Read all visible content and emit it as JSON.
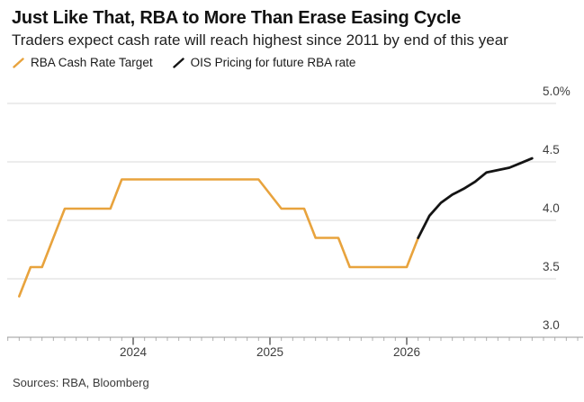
{
  "header": {
    "title": "Just Like That, RBA to More Than Erase Easing Cycle",
    "subtitle": "Traders expect cash rate will reach highest since 2011 by end of this year"
  },
  "legend": [
    {
      "label": "RBA Cash Rate Target",
      "color": "#E8A33D",
      "icon": "slash-icon"
    },
    {
      "label": "OIS Pricing for future RBA rate",
      "color": "#141414",
      "icon": "slash-icon"
    }
  ],
  "footer": {
    "sources": "Sources: RBA, Bloomberg"
  },
  "colors": {
    "rba_line": "#E8A33D",
    "ois_line": "#141414",
    "gridline": "#D9D9D9",
    "axis": "#9A9A9A",
    "minor_tick": "#B0B0B0",
    "major_tick": "#3C3C3C"
  },
  "chart_data": {
    "type": "line",
    "title": "Just Like That, RBA to More Than Erase Easing Cycle",
    "subtitle": "Traders expect cash rate will reach highest since 2011 by end of this year",
    "unit": "%",
    "grid": "horizontal-only",
    "legend_position": "top-left",
    "ylim": [
      3.0,
      5.0
    ],
    "xlim": [
      "2023-01",
      "2027-04"
    ],
    "y_axis": {
      "side": "right",
      "ticks": [
        {
          "value": 3.0,
          "label": "3.0"
        },
        {
          "value": 3.5,
          "label": "3.5"
        },
        {
          "value": 4.0,
          "label": "4.0"
        },
        {
          "value": 4.5,
          "label": "4.5"
        },
        {
          "value": 5.0,
          "label": "5.0%"
        }
      ]
    },
    "x_axis": {
      "minor_ticks": "monthly",
      "ticks": [
        {
          "month": "2024-01",
          "label": "2024"
        },
        {
          "month": "2025-01",
          "label": "2025"
        },
        {
          "month": "2026-01",
          "label": "2026"
        }
      ]
    },
    "series": [
      {
        "name": "RBA Cash Rate Target",
        "color": "#E8A33D",
        "points": [
          [
            "2023-03",
            3.35
          ],
          [
            "2023-04",
            3.6
          ],
          [
            "2023-05",
            3.6
          ],
          [
            "2023-06",
            3.85
          ],
          [
            "2023-07",
            4.1
          ],
          [
            "2023-11",
            4.1
          ],
          [
            "2023-12",
            4.35
          ],
          [
            "2024-12",
            4.35
          ],
          [
            "2025-02",
            4.1
          ],
          [
            "2025-04",
            4.1
          ],
          [
            "2025-05",
            3.85
          ],
          [
            "2025-07",
            3.85
          ],
          [
            "2025-08",
            3.6
          ],
          [
            "2026-01",
            3.6
          ],
          [
            "2026-02",
            3.85
          ]
        ]
      },
      {
        "name": "OIS Pricing for future RBA rate",
        "color": "#141414",
        "points": [
          [
            "2026-02",
            3.85
          ],
          [
            "2026-03",
            4.04
          ],
          [
            "2026-04",
            4.15
          ],
          [
            "2026-05",
            4.22
          ],
          [
            "2026-06",
            4.27
          ],
          [
            "2026-07",
            4.33
          ],
          [
            "2026-08",
            4.41
          ],
          [
            "2026-09",
            4.43
          ],
          [
            "2026-10",
            4.45
          ],
          [
            "2026-11",
            4.49
          ],
          [
            "2026-12",
            4.53
          ]
        ]
      }
    ]
  }
}
